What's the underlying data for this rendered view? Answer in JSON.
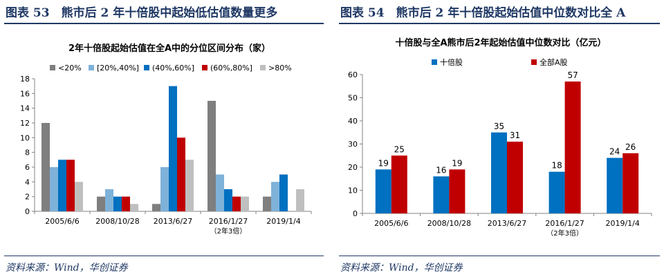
{
  "left": {
    "figure_title": "图表 53　熊市后 2 年十倍股中起始低估值数量更多",
    "source": "资料来源：Wind，华创证券"
  },
  "right": {
    "figure_title": "图表 54　熊市后 2 年十倍股起始估值中位数对比全 A",
    "source": "资料来源：Wind，华创证券"
  },
  "chart_data": [
    {
      "type": "bar",
      "title": "2年十倍股起始估值在全A中的分位区间分布（家）",
      "xlabel": "",
      "ylabel": "",
      "categories": [
        "2005/6/6",
        "2008/10/28",
        "2013/6/27",
        "2016/1/27",
        "2019/1/4"
      ],
      "category_notes": [
        "",
        "",
        "",
        "（2年3倍）",
        ""
      ],
      "series": [
        {
          "name": "<20%",
          "color": "#7f7f7f",
          "values": [
            12,
            2,
            1,
            15,
            2
          ]
        },
        {
          "name": "[20%,40%]",
          "color": "#7fb2d9",
          "values": [
            6,
            3,
            6,
            5,
            4
          ]
        },
        {
          "name": "(40%,60%]",
          "color": "#0070c0",
          "values": [
            7,
            2,
            17,
            3,
            5
          ]
        },
        {
          "name": "(60%,80%]",
          "color": "#c00000",
          "values": [
            7,
            2,
            10,
            2,
            0
          ]
        },
        {
          "name": ">80%",
          "color": "#bfbfbf",
          "values": [
            4,
            1,
            7,
            2,
            3
          ]
        }
      ],
      "ylim": [
        0,
        18
      ],
      "yticks": [
        0,
        2,
        4,
        6,
        8,
        10,
        12,
        14,
        16,
        18
      ],
      "legend": "top",
      "grid": false
    },
    {
      "type": "bar",
      "title": "十倍股与全A熊市后2年起始估值中位数对比（亿元）",
      "xlabel": "",
      "ylabel": "",
      "categories": [
        "2005/6/6",
        "2008/10/28",
        "2013/6/27",
        "2016/1/27",
        "2019/1/4"
      ],
      "category_notes": [
        "",
        "",
        "",
        "（2年3倍）",
        ""
      ],
      "series": [
        {
          "name": "十倍股",
          "color": "#0070c0",
          "values": [
            19,
            16,
            35,
            18,
            24
          ],
          "labels": [
            "19",
            "16",
            "35",
            "18",
            "24"
          ]
        },
        {
          "name": "全部A股",
          "color": "#c00000",
          "values": [
            25,
            19,
            31,
            57,
            26
          ],
          "labels": [
            "25",
            "19",
            "31",
            "57",
            "26"
          ]
        }
      ],
      "ylim": [
        0,
        60
      ],
      "yticks": [
        0,
        10,
        20,
        30,
        40,
        50,
        60
      ],
      "legend": "top",
      "grid": false
    }
  ]
}
